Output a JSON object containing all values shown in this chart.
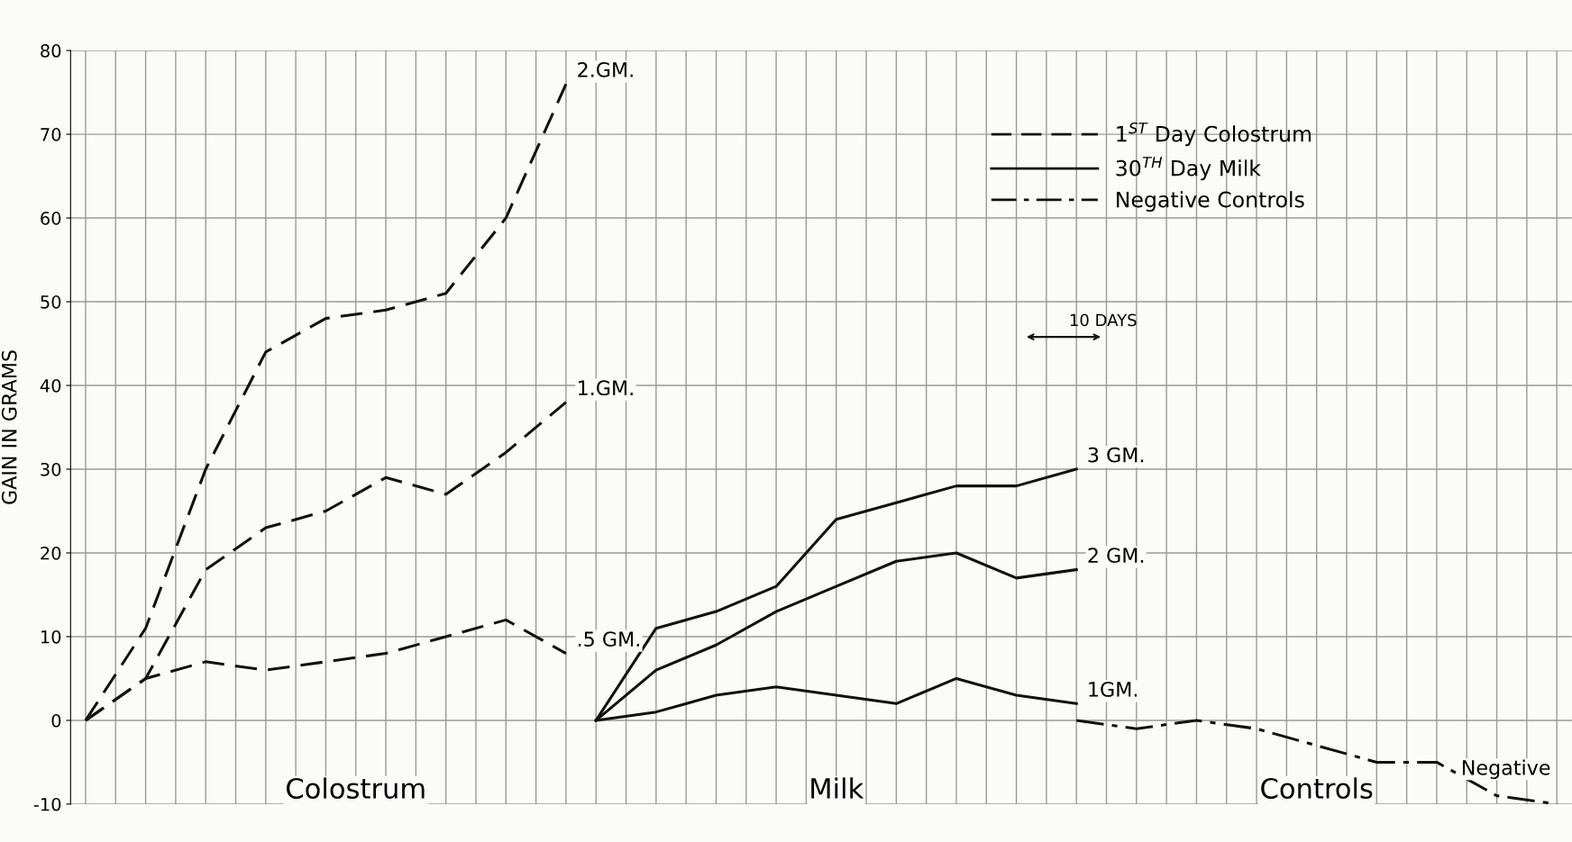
{
  "chart_data": {
    "type": "line",
    "ylabel": "GAIN IN GRAMS",
    "categories": [
      null,
      null,
      null,
      null,
      null,
      null,
      null,
      null,
      null,
      null,
      null,
      null,
      null,
      null,
      null,
      null,
      null,
      null,
      null,
      null,
      null,
      null,
      null,
      null,
      null,
      null,
      null,
      null,
      null,
      null,
      null,
      null,
      null,
      null,
      null,
      null,
      null,
      null,
      null,
      null,
      null,
      null,
      null,
      null,
      null,
      null,
      null,
      null,
      null,
      null
    ],
    "ylim": [
      -10,
      80
    ],
    "yticks": [
      -10,
      0,
      10,
      20,
      30,
      40,
      50,
      60,
      70,
      80
    ],
    "grid": true,
    "legend": "top right",
    "marker": "none",
    "annotations": [
      "1$^{ST}$ Day Colostrum",
      "30$^{TH}$ Day Milk",
      "Negative Controls",
      "10 DAYS",
      "Colostrum",
      "Milk",
      "Controls"
    ],
    "series": [
      {
        "name": "2.GM.",
        "color": "#111111",
        "line_style": "dashed",
        "values": [
          0,
          null,
          11,
          null,
          30,
          null,
          44,
          null,
          48,
          null,
          49,
          null,
          51,
          null,
          60,
          null,
          76,
          null,
          null,
          null,
          null,
          null,
          null,
          null,
          null,
          null,
          null,
          null,
          null,
          null,
          null,
          null,
          null,
          null,
          null,
          null,
          null,
          null,
          null,
          null,
          null,
          null,
          null,
          null,
          null,
          null,
          null,
          null,
          null,
          null
        ]
      },
      {
        "name": "1.GM.",
        "color": "#111111",
        "line_style": "dashed",
        "values": [
          0,
          null,
          5,
          null,
          18,
          null,
          23,
          null,
          25,
          null,
          29,
          null,
          27,
          null,
          32,
          null,
          38,
          null,
          null,
          null,
          null,
          null,
          null,
          null,
          null,
          null,
          null,
          null,
          null,
          null,
          null,
          null,
          null,
          null,
          null,
          null,
          null,
          null,
          null,
          null,
          null,
          null,
          null,
          null,
          null,
          null,
          null,
          null,
          null,
          null
        ]
      },
      {
        "name": ".5 GM.",
        "color": "#111111",
        "line_style": "dashed",
        "values": [
          0,
          null,
          5,
          null,
          7,
          null,
          6,
          null,
          7,
          null,
          8,
          null,
          10,
          null,
          12,
          null,
          8,
          null,
          null,
          null,
          null,
          null,
          null,
          null,
          null,
          null,
          null,
          null,
          null,
          null,
          null,
          null,
          null,
          null,
          null,
          null,
          null,
          null,
          null,
          null,
          null,
          null,
          null,
          null,
          null,
          null,
          null,
          null,
          null,
          null
        ]
      },
      {
        "name": "3 GM.",
        "color": "#111111",
        "line_style": "solid",
        "values": [
          null,
          null,
          null,
          null,
          null,
          null,
          null,
          null,
          null,
          null,
          null,
          null,
          null,
          null,
          null,
          null,
          null,
          0,
          null,
          11,
          null,
          13,
          null,
          16,
          null,
          24,
          null,
          26,
          null,
          28,
          null,
          28,
          null,
          30,
          null,
          null,
          null,
          null,
          null,
          null,
          null,
          null,
          null,
          null,
          null,
          null,
          null,
          null,
          null,
          null
        ]
      },
      {
        "name": "2 GM.",
        "color": "#111111",
        "line_style": "solid",
        "values": [
          null,
          null,
          null,
          null,
          null,
          null,
          null,
          null,
          null,
          null,
          null,
          null,
          null,
          null,
          null,
          null,
          null,
          0,
          null,
          6,
          null,
          9,
          null,
          13,
          null,
          16,
          null,
          19,
          null,
          20,
          null,
          17,
          null,
          18,
          null,
          null,
          null,
          null,
          null,
          null,
          null,
          null,
          null,
          null,
          null,
          null,
          null,
          null,
          null,
          null
        ]
      },
      {
        "name": "1GM.",
        "color": "#111111",
        "line_style": "solid",
        "values": [
          null,
          null,
          null,
          null,
          null,
          null,
          null,
          null,
          null,
          null,
          null,
          null,
          null,
          null,
          null,
          null,
          null,
          0,
          null,
          1,
          null,
          3,
          null,
          4,
          null,
          3,
          null,
          2,
          null,
          5,
          null,
          3,
          null,
          2,
          null,
          null,
          null,
          null,
          null,
          null,
          null,
          null,
          null,
          null,
          null,
          null,
          null,
          null,
          null,
          null
        ]
      },
      {
        "name": "Negative",
        "color": "#111111",
        "line_style": "dashdot",
        "values": [
          null,
          null,
          null,
          null,
          null,
          null,
          null,
          null,
          null,
          null,
          null,
          null,
          null,
          null,
          null,
          null,
          null,
          null,
          null,
          null,
          null,
          null,
          null,
          null,
          null,
          null,
          null,
          null,
          null,
          null,
          null,
          null,
          null,
          0,
          null,
          -1,
          null,
          0,
          null,
          -1,
          null,
          -3,
          null,
          -5,
          null,
          -5,
          null,
          -9,
          null,
          -10
        ]
      }
    ]
  }
}
